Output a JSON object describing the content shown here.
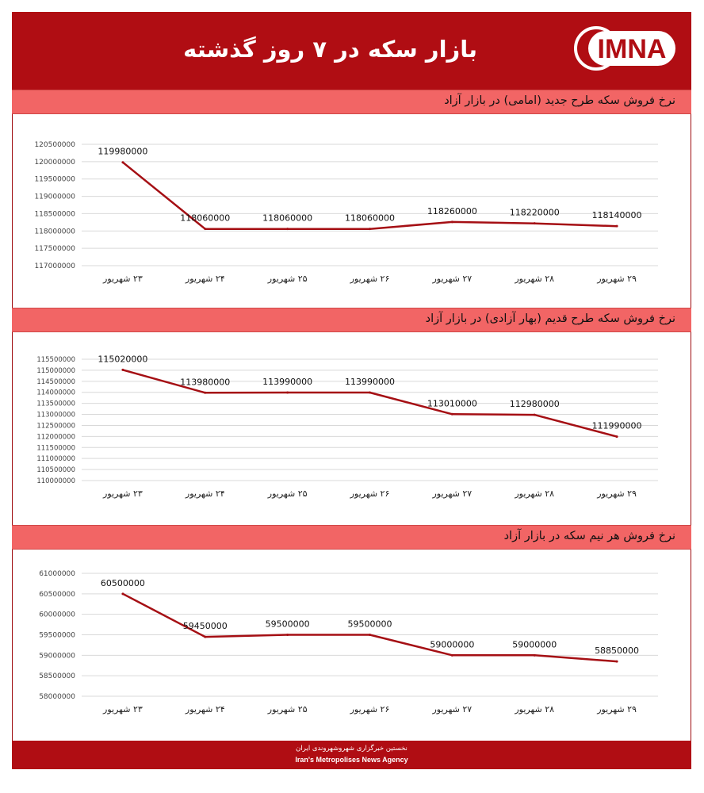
{
  "header": {
    "title": "بازار سکه در ۷ روز گذشته",
    "logo_text": "IMNA",
    "brand_color": "#b00d13"
  },
  "colors": {
    "line": "#a50f14",
    "section_bar": "#f26565",
    "grid": "#d9d9d9"
  },
  "chart_data": [
    {
      "type": "line",
      "title": "نرخ فروش سکه طرح جدید (امامی) در بازار آزاد",
      "categories": [
        "۲۳ شهریور",
        "۲۴ شهریور",
        "۲۵ شهریور",
        "۲۶ شهریور",
        "۲۷ شهریور",
        "۲۸ شهریور",
        "۲۹ شهریور"
      ],
      "values": [
        119980000,
        118060000,
        118060000,
        118060000,
        118260000,
        118220000,
        118140000
      ],
      "data_labels": [
        "119980000",
        "118060000",
        "118060000",
        "118060000",
        "118260000",
        "118220000",
        "118140000"
      ],
      "yticks": [
        "120500000",
        "120000000",
        "119500000",
        "119000000",
        "118500000",
        "118000000",
        "117500000",
        "117000000"
      ],
      "ylim": [
        117000000,
        120500000
      ],
      "grid": true,
      "legend": "none"
    },
    {
      "type": "line",
      "title": "نرخ فروش سکه طرح قدیم (بهار آزادی) در بازار آزاد",
      "categories": [
        "۲۳ شهریور",
        "۲۴ شهریور",
        "۲۵ شهریور",
        "۲۶ شهریور",
        "۲۷ شهریور",
        "۲۸ شهریور",
        "۲۹ شهریور"
      ],
      "values": [
        115020000,
        113980000,
        113990000,
        113990000,
        113010000,
        112980000,
        111990000
      ],
      "data_labels": [
        "115020000",
        "113980000",
        "113990000",
        "113990000",
        "113010000",
        "112980000",
        "111990000"
      ],
      "yticks": [
        "115500000",
        "115000000",
        "114500000",
        "114000000",
        "113500000",
        "113000000",
        "112500000",
        "112000000",
        "111500000",
        "111000000",
        "110500000",
        "110000000"
      ],
      "ylim": [
        110000000,
        115500000
      ],
      "grid": true,
      "legend": "none"
    },
    {
      "type": "line",
      "title": "نرخ فروش هر نیم سکه در بازار آزاد",
      "categories": [
        "۲۳ شهریور",
        "۲۴ شهریور",
        "۲۵ شهریور",
        "۲۶ شهریور",
        "۲۷ شهریور",
        "۲۸ شهریور",
        "۲۹ شهریور"
      ],
      "values": [
        60500000,
        59450000,
        59500000,
        59500000,
        59000000,
        59000000,
        58850000
      ],
      "data_labels": [
        "60500000",
        "59450000",
        "59500000",
        "59500000",
        "59000000",
        "59000000",
        "58850000"
      ],
      "yticks": [
        "61000000",
        "60500000",
        "60000000",
        "59500000",
        "59000000",
        "58500000",
        "58000000"
      ],
      "ylim": [
        58000000,
        61000000
      ],
      "grid": true,
      "legend": "none"
    }
  ],
  "footer": {
    "line1": "نخستین خبرگزاری شهروشهروندی ایران",
    "line2": "Iran's Metropolises News Agency"
  }
}
